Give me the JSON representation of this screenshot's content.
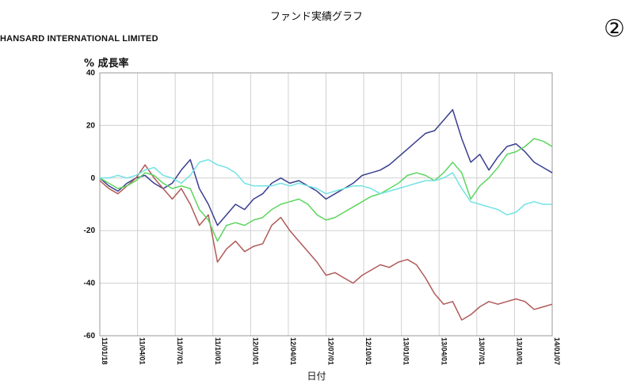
{
  "page": {
    "title": "ファンド実績グラフ",
    "company": "HANSARD INTERNATIONAL LIMITED",
    "badge": "②"
  },
  "chart_data": {
    "type": "line",
    "title": "ファンド実績グラフ",
    "ylabel": "% 成長率",
    "xlabel": "日付",
    "ylim": [
      -60,
      40
    ],
    "yticks": [
      40,
      20,
      0,
      -20,
      -40,
      -60
    ],
    "xticks": [
      "11/01/18",
      "11/04/01",
      "11/07/01",
      "11/10/01",
      "12/01/01",
      "12/04/01",
      "12/07/01",
      "12/10/01",
      "13/01/01",
      "13/04/01",
      "13/07/01",
      "13/10/01",
      "14/01/07"
    ],
    "grid": true,
    "legend": "none",
    "series": [
      {
        "color": "#3a3f8f",
        "values": [
          [
            0,
            0
          ],
          [
            0.3,
            -3
          ],
          [
            0.6,
            -5
          ],
          [
            0.9,
            -2
          ],
          [
            1.2,
            0
          ],
          [
            1.5,
            1
          ],
          [
            1.8,
            -2
          ],
          [
            2.1,
            -4
          ],
          [
            2.4,
            -2
          ],
          [
            2.7,
            3
          ],
          [
            3.0,
            7
          ],
          [
            3.3,
            -4
          ],
          [
            3.6,
            -10
          ],
          [
            3.9,
            -18
          ],
          [
            4.2,
            -14
          ],
          [
            4.5,
            -10
          ],
          [
            4.8,
            -12
          ],
          [
            5.1,
            -8
          ],
          [
            5.4,
            -6
          ],
          [
            5.7,
            -2
          ],
          [
            6.0,
            0
          ],
          [
            6.3,
            -2
          ],
          [
            6.6,
            -1
          ],
          [
            6.9,
            -3
          ],
          [
            7.2,
            -5
          ],
          [
            7.5,
            -8
          ],
          [
            7.8,
            -6
          ],
          [
            8.1,
            -4
          ],
          [
            8.4,
            -2
          ],
          [
            8.7,
            1
          ],
          [
            9.0,
            2
          ],
          [
            9.3,
            3
          ],
          [
            9.6,
            5
          ],
          [
            9.9,
            8
          ],
          [
            10.2,
            11
          ],
          [
            10.5,
            14
          ],
          [
            10.8,
            17
          ],
          [
            11.1,
            18
          ],
          [
            11.4,
            22
          ],
          [
            11.7,
            26
          ],
          [
            12.0,
            15
          ],
          [
            12.3,
            6
          ],
          [
            12.6,
            9
          ],
          [
            12.9,
            3
          ],
          [
            13.2,
            8
          ],
          [
            13.5,
            12
          ],
          [
            13.8,
            13
          ],
          [
            14.1,
            10
          ],
          [
            14.4,
            6
          ],
          [
            14.7,
            4
          ],
          [
            15.0,
            2
          ]
        ]
      },
      {
        "color": "#b05a58",
        "values": [
          [
            0,
            -1
          ],
          [
            0.3,
            -4
          ],
          [
            0.6,
            -6
          ],
          [
            0.9,
            -3
          ],
          [
            1.2,
            0
          ],
          [
            1.5,
            5
          ],
          [
            1.8,
            0
          ],
          [
            2.1,
            -4
          ],
          [
            2.4,
            -8
          ],
          [
            2.7,
            -4
          ],
          [
            3.0,
            -10
          ],
          [
            3.3,
            -18
          ],
          [
            3.6,
            -14
          ],
          [
            3.9,
            -32
          ],
          [
            4.2,
            -27
          ],
          [
            4.5,
            -24
          ],
          [
            4.8,
            -28
          ],
          [
            5.1,
            -26
          ],
          [
            5.4,
            -25
          ],
          [
            5.7,
            -18
          ],
          [
            6.0,
            -15
          ],
          [
            6.3,
            -20
          ],
          [
            6.6,
            -24
          ],
          [
            6.9,
            -28
          ],
          [
            7.2,
            -32
          ],
          [
            7.5,
            -37
          ],
          [
            7.8,
            -36
          ],
          [
            8.1,
            -38
          ],
          [
            8.4,
            -40
          ],
          [
            8.7,
            -37
          ],
          [
            9.0,
            -35
          ],
          [
            9.3,
            -33
          ],
          [
            9.6,
            -34
          ],
          [
            9.9,
            -32
          ],
          [
            10.2,
            -31
          ],
          [
            10.5,
            -33
          ],
          [
            10.8,
            -38
          ],
          [
            11.1,
            -44
          ],
          [
            11.4,
            -48
          ],
          [
            11.7,
            -47
          ],
          [
            12.0,
            -54
          ],
          [
            12.3,
            -52
          ],
          [
            12.6,
            -49
          ],
          [
            12.9,
            -47
          ],
          [
            13.2,
            -48
          ],
          [
            13.5,
            -47
          ],
          [
            13.8,
            -46
          ],
          [
            14.1,
            -47
          ],
          [
            14.4,
            -50
          ],
          [
            14.7,
            -49
          ],
          [
            15.0,
            -48
          ]
        ]
      },
      {
        "color": "#5dd560",
        "values": [
          [
            0,
            0
          ],
          [
            0.3,
            -2
          ],
          [
            0.6,
            -4
          ],
          [
            0.9,
            -3
          ],
          [
            1.2,
            -1
          ],
          [
            1.5,
            2
          ],
          [
            1.8,
            1
          ],
          [
            2.1,
            -2
          ],
          [
            2.4,
            -4
          ],
          [
            2.7,
            -3
          ],
          [
            3.0,
            -4
          ],
          [
            3.3,
            -12
          ],
          [
            3.6,
            -16
          ],
          [
            3.9,
            -24
          ],
          [
            4.2,
            -18
          ],
          [
            4.5,
            -17
          ],
          [
            4.8,
            -18
          ],
          [
            5.1,
            -16
          ],
          [
            5.4,
            -15
          ],
          [
            5.7,
            -12
          ],
          [
            6.0,
            -10
          ],
          [
            6.3,
            -9
          ],
          [
            6.6,
            -8
          ],
          [
            6.9,
            -10
          ],
          [
            7.2,
            -14
          ],
          [
            7.5,
            -16
          ],
          [
            7.8,
            -15
          ],
          [
            8.1,
            -13
          ],
          [
            8.4,
            -11
          ],
          [
            8.7,
            -9
          ],
          [
            9.0,
            -7
          ],
          [
            9.3,
            -6
          ],
          [
            9.6,
            -4
          ],
          [
            9.9,
            -2
          ],
          [
            10.2,
            1
          ],
          [
            10.5,
            2
          ],
          [
            10.8,
            1
          ],
          [
            11.1,
            -1
          ],
          [
            11.4,
            2
          ],
          [
            11.7,
            6
          ],
          [
            12.0,
            2
          ],
          [
            12.3,
            -8
          ],
          [
            12.6,
            -3
          ],
          [
            12.9,
            0
          ],
          [
            13.2,
            4
          ],
          [
            13.5,
            9
          ],
          [
            13.8,
            10
          ],
          [
            14.1,
            12
          ],
          [
            14.4,
            15
          ],
          [
            14.7,
            14
          ],
          [
            15.0,
            12
          ]
        ]
      },
      {
        "color": "#74e2e4",
        "values": [
          [
            0,
            0
          ],
          [
            0.3,
            0
          ],
          [
            0.6,
            1
          ],
          [
            0.9,
            0
          ],
          [
            1.2,
            1
          ],
          [
            1.5,
            3
          ],
          [
            1.8,
            4
          ],
          [
            2.1,
            1
          ],
          [
            2.4,
            0
          ],
          [
            2.7,
            -2
          ],
          [
            3.0,
            1
          ],
          [
            3.3,
            6
          ],
          [
            3.6,
            7
          ],
          [
            3.9,
            5
          ],
          [
            4.2,
            4
          ],
          [
            4.5,
            2
          ],
          [
            4.8,
            -2
          ],
          [
            5.1,
            -3
          ],
          [
            5.4,
            -3
          ],
          [
            5.7,
            -3
          ],
          [
            6.0,
            -2
          ],
          [
            6.3,
            -3
          ],
          [
            6.6,
            -2
          ],
          [
            6.9,
            -3
          ],
          [
            7.2,
            -4
          ],
          [
            7.5,
            -6
          ],
          [
            7.8,
            -5
          ],
          [
            8.1,
            -4
          ],
          [
            8.4,
            -3
          ],
          [
            8.7,
            -3
          ],
          [
            9.0,
            -4
          ],
          [
            9.3,
            -6
          ],
          [
            9.6,
            -5
          ],
          [
            9.9,
            -4
          ],
          [
            10.2,
            -3
          ],
          [
            10.5,
            -2
          ],
          [
            10.8,
            -1
          ],
          [
            11.1,
            -1
          ],
          [
            11.4,
            0
          ],
          [
            11.7,
            2
          ],
          [
            12.0,
            -4
          ],
          [
            12.3,
            -9
          ],
          [
            12.6,
            -10
          ],
          [
            12.9,
            -11
          ],
          [
            13.2,
            -12
          ],
          [
            13.5,
            -14
          ],
          [
            13.8,
            -13
          ],
          [
            14.1,
            -10
          ],
          [
            14.4,
            -9
          ],
          [
            14.7,
            -10
          ],
          [
            15.0,
            -10
          ]
        ]
      }
    ]
  }
}
